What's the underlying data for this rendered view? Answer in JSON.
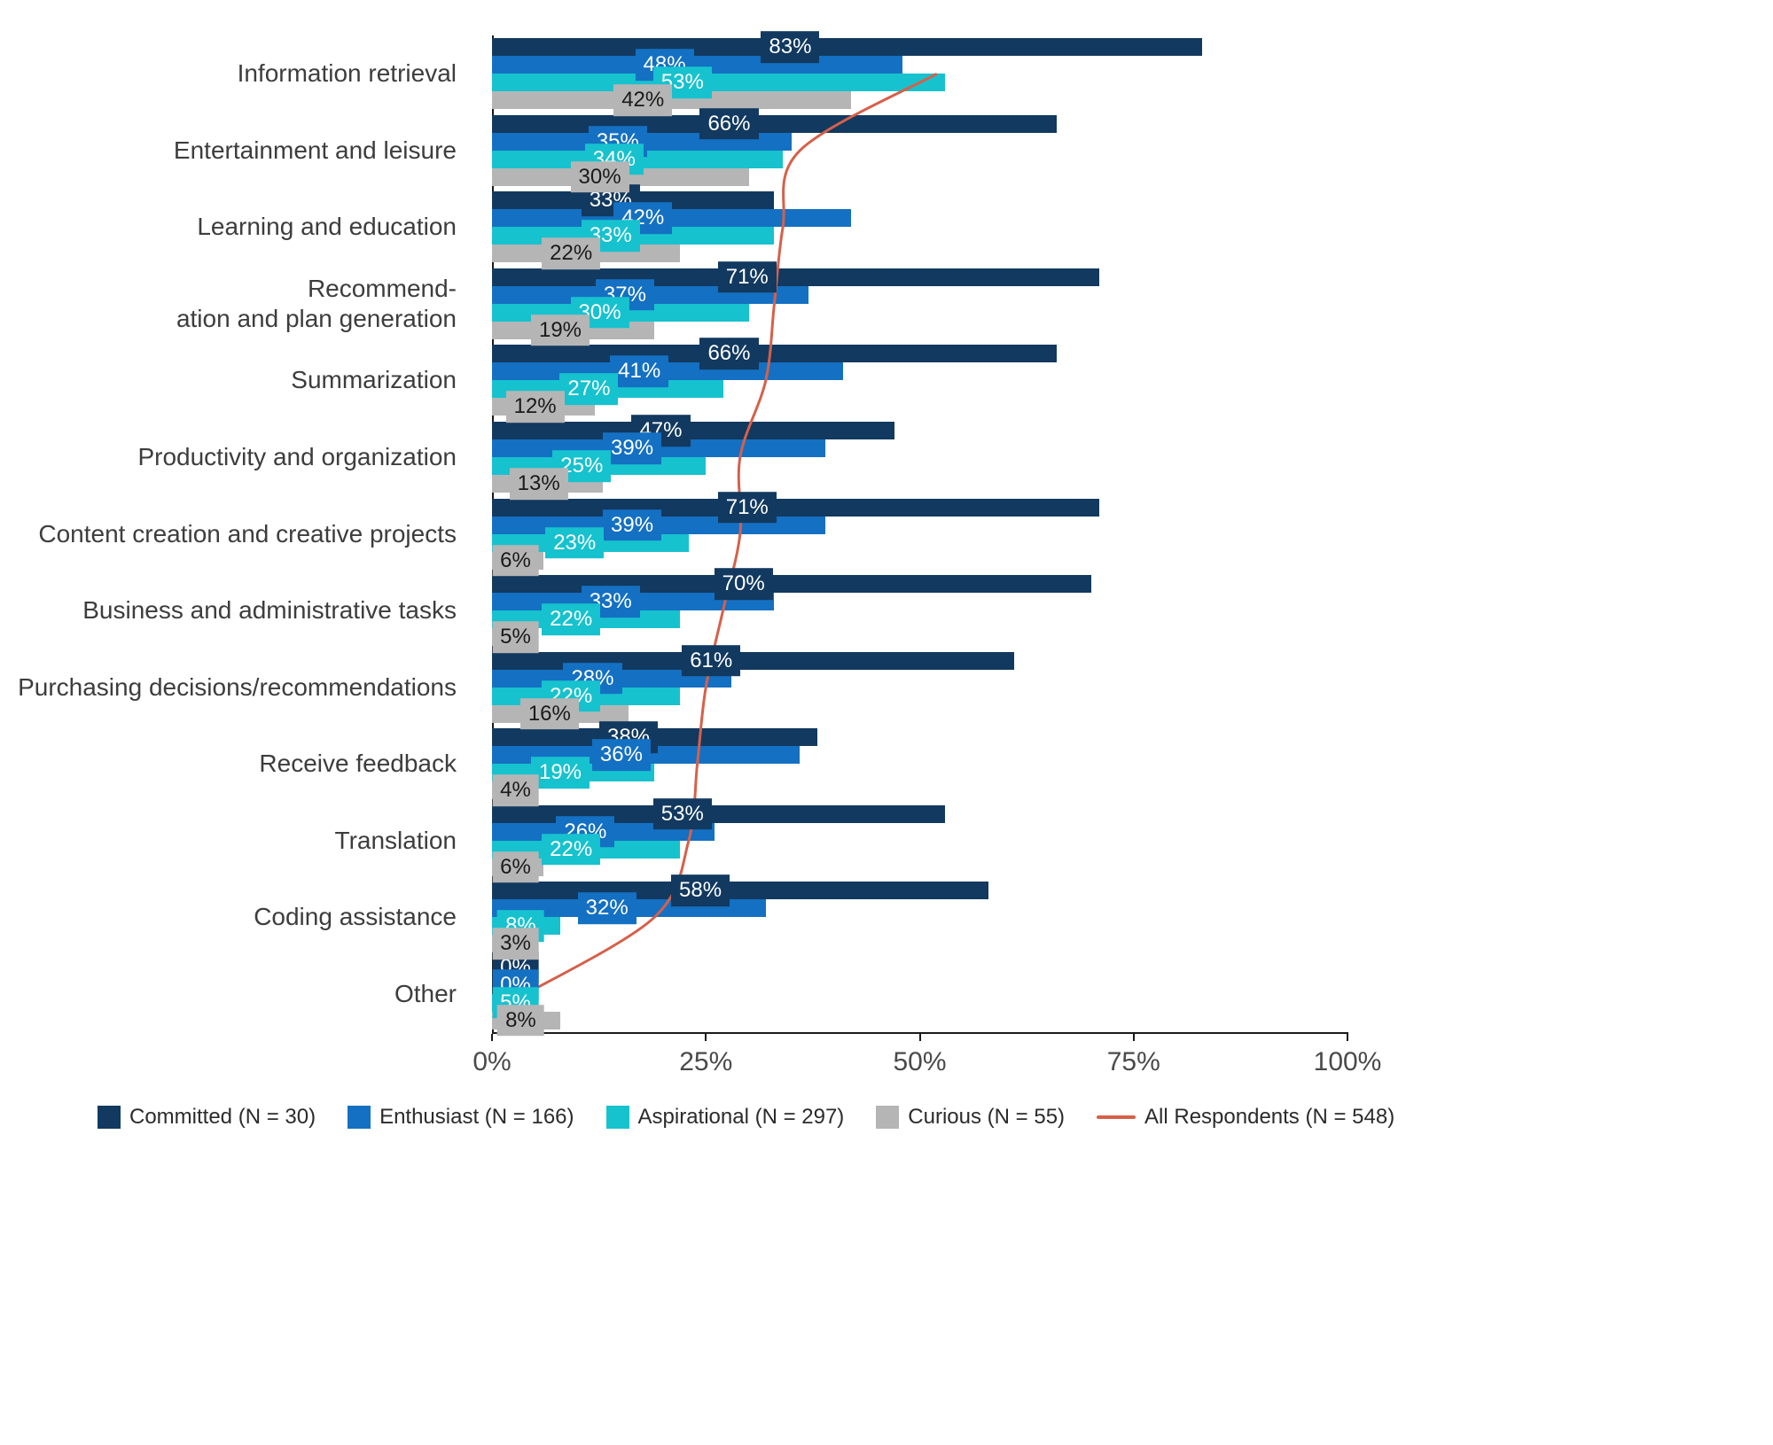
{
  "chart_data": {
    "type": "bar",
    "orientation": "horizontal",
    "title": "",
    "categories": [
      "Information retrieval",
      "Entertainment and leisure",
      "Learning and education",
      "Recommend-\nation and plan generation",
      "Summarization",
      "Productivity and organization",
      "Content creation and creative projects",
      "Business and administrative tasks",
      "Purchasing decisions/recommendations",
      "Receive feedback",
      "Translation",
      "Coding assistance",
      "Other"
    ],
    "series": [
      {
        "name": "Committed (N = 30)",
        "color": "#12395f",
        "label_text_color": "#ffffff",
        "values": [
          83,
          66,
          33,
          71,
          66,
          47,
          71,
          70,
          61,
          38,
          53,
          58,
          0
        ]
      },
      {
        "name": "Enthusiast (N = 166)",
        "color": "#1470c2",
        "label_text_color": "#ffffff",
        "values": [
          48,
          35,
          42,
          37,
          41,
          39,
          39,
          33,
          28,
          36,
          26,
          32,
          0
        ]
      },
      {
        "name": "Aspirational (N = 297)",
        "color": "#16c2ce",
        "label_text_color": "#ffffff",
        "values": [
          53,
          34,
          33,
          30,
          27,
          25,
          23,
          22,
          22,
          19,
          22,
          8,
          5
        ]
      },
      {
        "name": "Curious (N = 55)",
        "color": "#b5b5b5",
        "label_text_color": "#1a1a1a",
        "values": [
          42,
          30,
          22,
          19,
          12,
          13,
          6,
          5,
          16,
          4,
          6,
          3,
          8
        ]
      }
    ],
    "line_series": {
      "name": "All Respondents (N = 548)",
      "color": "#d6604a",
      "values": [
        52,
        36,
        34,
        33,
        32,
        29,
        29,
        27,
        25,
        24,
        23,
        19,
        4
      ]
    },
    "xlim": [
      0,
      100
    ],
    "x_ticks": [
      {
        "value": 0,
        "label": "0%"
      },
      {
        "value": 25,
        "label": "25%"
      },
      {
        "value": 50,
        "label": "50%"
      },
      {
        "value": 75,
        "label": "75%"
      },
      {
        "value": 100,
        "label": "100%"
      }
    ],
    "value_suffix": "%",
    "grid": false,
    "legend_position": "bottom"
  }
}
